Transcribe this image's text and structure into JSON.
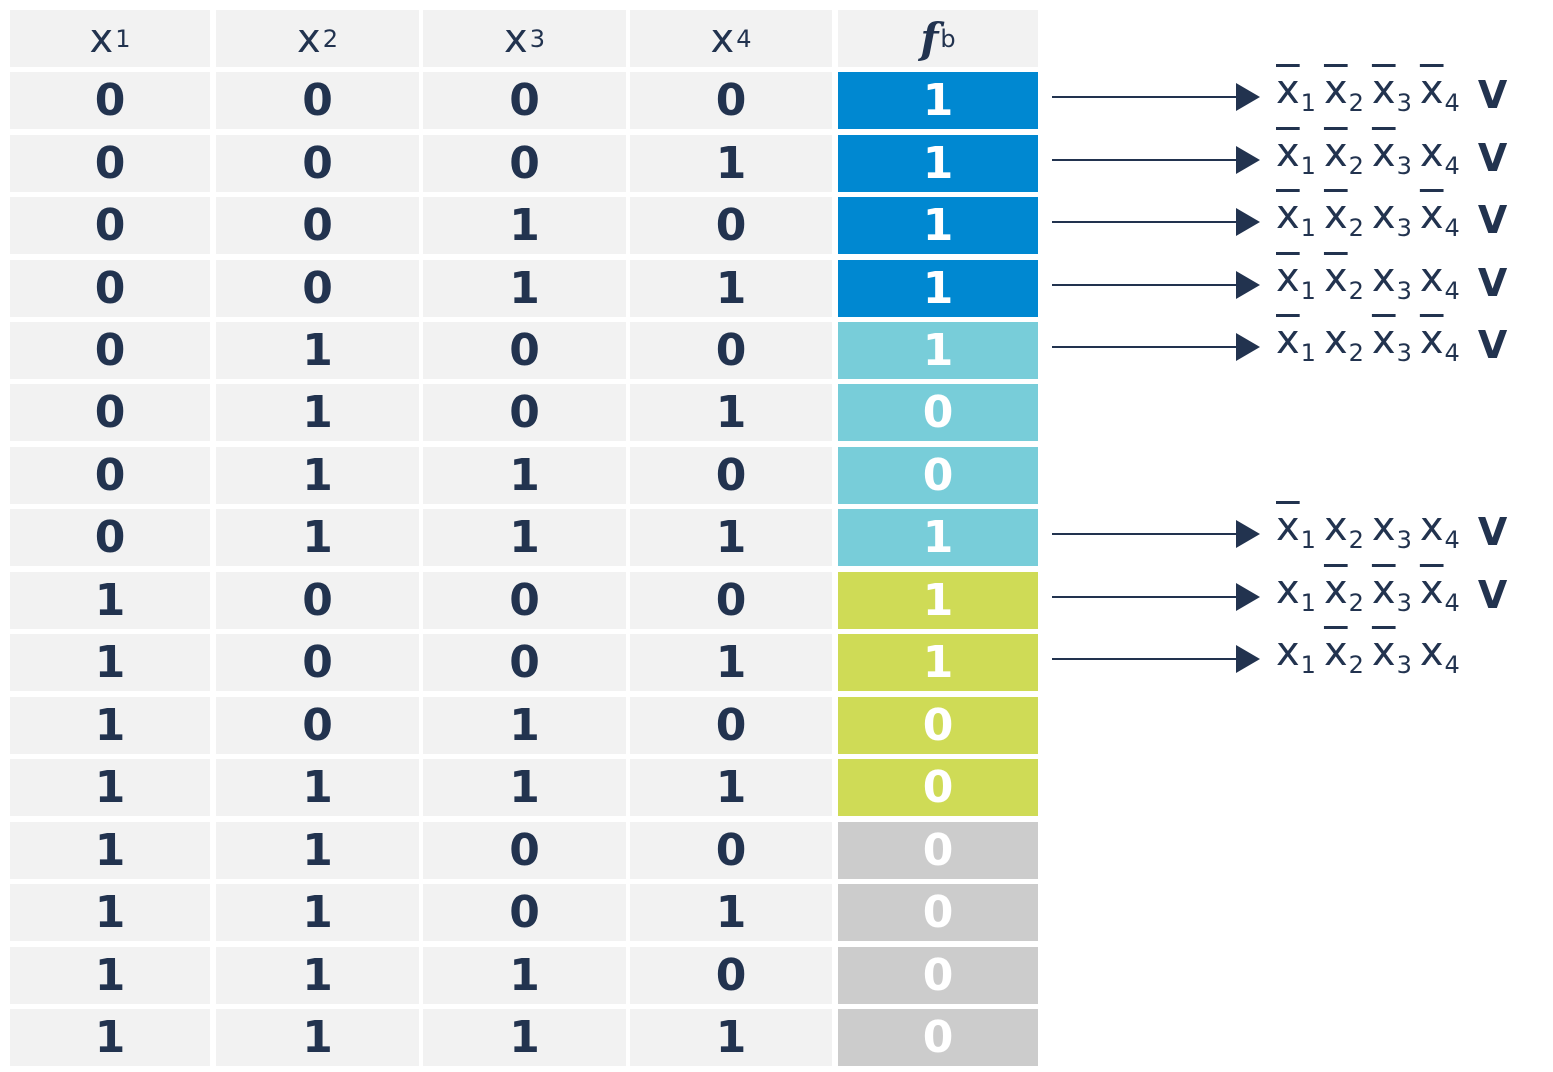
{
  "headers": [
    {
      "base": "x",
      "sub": "1"
    },
    {
      "base": "x",
      "sub": "2"
    },
    {
      "base": "x",
      "sub": "3"
    },
    {
      "base": "x",
      "sub": "4"
    },
    {
      "base": "f",
      "sub": "b"
    }
  ],
  "rows": [
    {
      "vals": [
        "0",
        "0",
        "0",
        "0"
      ],
      "f": "1",
      "group": "blue"
    },
    {
      "vals": [
        "0",
        "0",
        "0",
        "1"
      ],
      "f": "1",
      "group": "blue"
    },
    {
      "vals": [
        "0",
        "0",
        "1",
        "0"
      ],
      "f": "1",
      "group": "blue"
    },
    {
      "vals": [
        "0",
        "0",
        "1",
        "1"
      ],
      "f": "1",
      "group": "blue"
    },
    {
      "vals": [
        "0",
        "1",
        "0",
        "0"
      ],
      "f": "1",
      "group": "cyan"
    },
    {
      "vals": [
        "0",
        "1",
        "0",
        "1"
      ],
      "f": "0",
      "group": "cyan"
    },
    {
      "vals": [
        "0",
        "1",
        "1",
        "0"
      ],
      "f": "0",
      "group": "cyan"
    },
    {
      "vals": [
        "0",
        "1",
        "1",
        "1"
      ],
      "f": "1",
      "group": "cyan"
    },
    {
      "vals": [
        "1",
        "0",
        "0",
        "0"
      ],
      "f": "1",
      "group": "lime"
    },
    {
      "vals": [
        "1",
        "0",
        "0",
        "1"
      ],
      "f": "1",
      "group": "lime"
    },
    {
      "vals": [
        "1",
        "0",
        "1",
        "0"
      ],
      "f": "0",
      "group": "lime"
    },
    {
      "vals": [
        "1",
        "1",
        "1",
        "1"
      ],
      "f": "0",
      "group": "lime"
    },
    {
      "vals": [
        "1",
        "1",
        "0",
        "0"
      ],
      "f": "0",
      "group": "gray"
    },
    {
      "vals": [
        "1",
        "1",
        "0",
        "1"
      ],
      "f": "0",
      "group": "gray"
    },
    {
      "vals": [
        "1",
        "1",
        "1",
        "0"
      ],
      "f": "0",
      "group": "gray"
    },
    {
      "vals": [
        "1",
        "1",
        "1",
        "1"
      ],
      "f": "0",
      "group": "gray"
    }
  ],
  "colors": {
    "blue": "#0088d1",
    "cyan": "#78cdd9",
    "lime": "#cfdb56",
    "gray": "#cccccc",
    "cell_bg": "#f2f2f2",
    "text": "#22334f"
  },
  "terms": [
    {
      "row": 0,
      "negs": [
        true,
        true,
        true,
        true
      ],
      "or": "V"
    },
    {
      "row": 1,
      "negs": [
        true,
        true,
        true,
        false
      ],
      "or": "V"
    },
    {
      "row": 2,
      "negs": [
        true,
        true,
        false,
        true
      ],
      "or": "V"
    },
    {
      "row": 3,
      "negs": [
        true,
        true,
        false,
        false
      ],
      "or": "V"
    },
    {
      "row": 4,
      "negs": [
        true,
        false,
        true,
        true
      ],
      "or": "V"
    },
    {
      "row": 7,
      "negs": [
        true,
        false,
        false,
        false
      ],
      "or": "V"
    },
    {
      "row": 8,
      "negs": [
        false,
        true,
        true,
        true
      ],
      "or": "V"
    },
    {
      "row": 9,
      "negs": [
        false,
        true,
        true,
        false
      ],
      "or": ""
    }
  ],
  "term_var": "x"
}
